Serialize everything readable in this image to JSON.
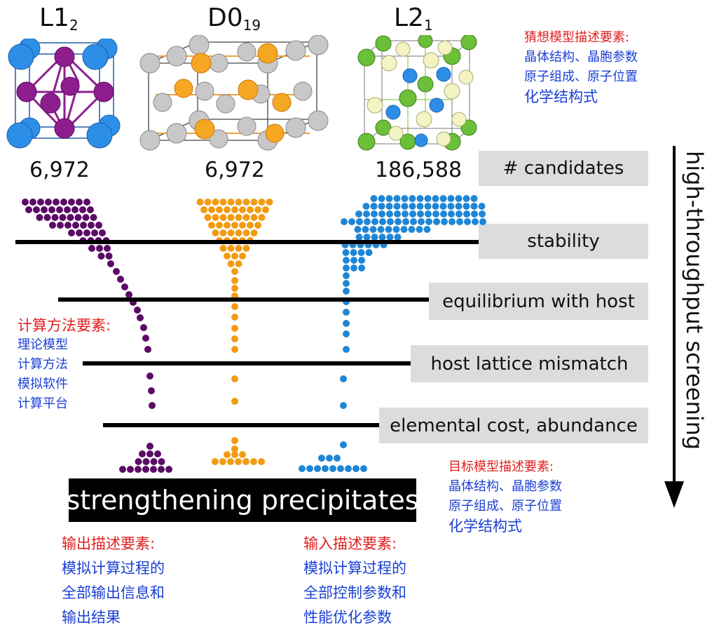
{
  "structures": [
    {
      "name": "L1",
      "sub": "2",
      "count": "6,972",
      "color": "#5b0a66"
    },
    {
      "name": "D0",
      "sub": "19",
      "count": "6,972",
      "color": "#f29b12"
    },
    {
      "name": "L2",
      "sub": "1",
      "count": "186,588",
      "color": "#1f86d6"
    }
  ],
  "stages": {
    "candidates": "# candidates",
    "stability": "stability",
    "equilibrium": "equilibrium with host",
    "mismatch": "host lattice mismatch",
    "cost": "elemental cost, abundance"
  },
  "screening_title": "high-throughput screening",
  "result_label": "strengthening precipitates",
  "notes": {
    "guess": {
      "head": "猜想模型描述要素:",
      "items": [
        "晶体结构、晶胞参数",
        "原子组成、原子位置",
        "化学结构式"
      ]
    },
    "method": {
      "head": "计算方法要素:",
      "items": [
        "理论模型",
        "计算方法",
        "模拟软件",
        "计算平台"
      ]
    },
    "target": {
      "head": "目标模型描述要素:",
      "items": [
        "晶体结构、晶胞参数",
        "原子组成、原子位置",
        "化学结构式"
      ]
    },
    "output": {
      "head": "输出描述要素:",
      "items": [
        "模拟计算过程的",
        "全部输出信息和",
        "输出结果"
      ]
    },
    "input": {
      "head": "输入描述要素:",
      "items": [
        "模拟计算过程的",
        "全部控制参数和",
        "性能优化参数"
      ]
    }
  },
  "colors": {
    "purple": "#5b0a66",
    "orange": "#f29b12",
    "blue": "#1f86d6",
    "box": "#dcdcdc",
    "note_red": "#e02020",
    "note_blue": "#1a3fd4"
  }
}
